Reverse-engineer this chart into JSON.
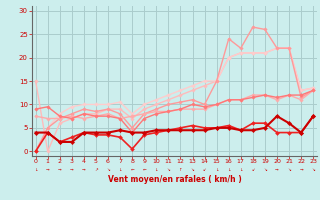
{
  "bg_color": "#cceeed",
  "grid_color": "#aacccc",
  "text_color": "#cc0000",
  "xlabel": "Vent moyen/en rafales ( km/h )",
  "x": [
    0,
    1,
    2,
    3,
    4,
    5,
    6,
    7,
    8,
    9,
    10,
    11,
    12,
    13,
    14,
    15,
    16,
    17,
    18,
    19,
    20,
    21,
    22,
    23
  ],
  "lines": [
    {
      "comment": "light pink diagonal line top - goes from 15 down to 0 then back up",
      "y": [
        15,
        0,
        6,
        7,
        8,
        8,
        9,
        9,
        7,
        9,
        10,
        11,
        12,
        13,
        14,
        15,
        20,
        21,
        21,
        21,
        22,
        22,
        13,
        13.5
      ],
      "color": "#ffbbbb",
      "lw": 1.0,
      "marker": "D",
      "ms": 1.8
    },
    {
      "comment": "lightest pink upper envelope line",
      "y": [
        0,
        5,
        8,
        9.5,
        10,
        10,
        10,
        10.5,
        8,
        10,
        11,
        12,
        13,
        14,
        15,
        15,
        20,
        21,
        21,
        21,
        22,
        22,
        13,
        13.5
      ],
      "color": "#ffcccc",
      "lw": 1.0,
      "marker": "D",
      "ms": 1.8
    },
    {
      "comment": "pink line second from top - big peaks at 16-19",
      "y": [
        0,
        5,
        7,
        8,
        9,
        8.5,
        9,
        8,
        5,
        8,
        9,
        10,
        10.5,
        11,
        10,
        15,
        24,
        22,
        26.5,
        26,
        22,
        22,
        11.5,
        13
      ],
      "color": "#ff9999",
      "lw": 1.0,
      "marker": "D",
      "ms": 1.8
    },
    {
      "comment": "medium pink line - relatively flat ~7-13",
      "y": [
        7.5,
        7,
        7,
        7.5,
        7,
        7.5,
        8,
        7,
        7.5,
        8,
        8.5,
        8.5,
        9,
        9,
        9,
        10,
        11,
        11,
        12,
        12,
        11,
        12,
        11,
        13
      ],
      "color": "#ffaaaa",
      "lw": 1.0,
      "marker": "D",
      "ms": 1.8
    },
    {
      "comment": "darker pink/red - middle range line",
      "y": [
        9,
        9.5,
        7.5,
        7,
        8,
        7.5,
        7.5,
        7,
        4,
        7,
        8,
        8.5,
        9,
        10,
        9.5,
        10,
        11,
        11,
        11.5,
        12,
        11.5,
        12,
        12,
        13
      ],
      "color": "#ff7777",
      "lw": 1.0,
      "marker": "D",
      "ms": 1.8
    },
    {
      "comment": "red line - lower middle",
      "y": [
        0,
        4,
        2,
        3,
        4,
        3.5,
        3.5,
        3,
        0.5,
        3.5,
        4,
        4.5,
        5,
        5.5,
        5,
        5,
        5.5,
        4.5,
        6,
        6,
        4,
        4,
        4,
        7.5
      ],
      "color": "#ee2222",
      "lw": 1.2,
      "marker": "D",
      "ms": 2.0
    },
    {
      "comment": "dark red bottom line - flattest",
      "y": [
        4,
        4,
        2,
        2,
        4,
        4,
        4,
        4.5,
        4,
        4,
        4.5,
        4.5,
        4.5,
        4.5,
        4.5,
        5,
        5,
        4.5,
        4.5,
        5,
        7.5,
        6,
        4,
        7.5
      ],
      "color": "#cc0000",
      "lw": 1.5,
      "marker": "D",
      "ms": 2.2
    }
  ],
  "xticks": [
    0,
    1,
    2,
    3,
    4,
    5,
    6,
    7,
    8,
    9,
    10,
    11,
    12,
    13,
    14,
    15,
    16,
    17,
    18,
    19,
    20,
    21,
    22,
    23
  ],
  "yticks": [
    0,
    5,
    10,
    15,
    20,
    25,
    30
  ],
  "xlim": [
    -0.3,
    23.3
  ],
  "ylim": [
    -1,
    31
  ],
  "arrow_symbols": [
    "↓",
    "→",
    "→",
    "→",
    "→",
    "↗",
    "↘",
    "↓",
    "←",
    "←",
    "↓",
    "↘",
    "↑",
    "↘",
    "↙",
    "↓",
    "↓",
    "↓",
    "↙",
    "↘",
    "→",
    "↘",
    "→",
    "↘"
  ]
}
